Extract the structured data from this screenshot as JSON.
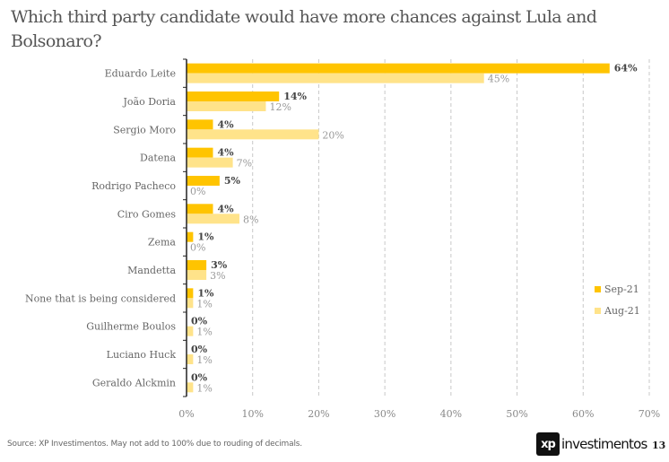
{
  "chart_data": {
    "type": "bar",
    "orientation": "horizontal",
    "title": "Which third party candidate would have more chances against Lula and Bolsonaro?",
    "categories": [
      "Eduardo Leite",
      "João Doria",
      "Sergio Moro",
      "Datena",
      "Rodrigo Pacheco",
      "Ciro Gomes",
      "Zema",
      "Mandetta",
      "None that is being considered",
      "Guilherme Boulos",
      "Luciano Huck",
      "Geraldo Alckmin"
    ],
    "series": [
      {
        "name": "Sep-21",
        "color": "#FFC400",
        "values": [
          64,
          14,
          4,
          4,
          5,
          4,
          1,
          3,
          1,
          0,
          0,
          0
        ],
        "labels": [
          "64%",
          "14%",
          "4%",
          "4%",
          "5%",
          "4%",
          "1%",
          "3%",
          "1%",
          "0%",
          "0%",
          "0%"
        ]
      },
      {
        "name": "Aug-21",
        "color": "#FFE38A",
        "values": [
          45,
          12,
          20,
          7,
          0,
          8,
          0,
          3,
          1,
          1,
          1,
          1
        ],
        "labels": [
          "45%",
          "12%",
          "20%",
          "7%",
          "0%",
          "8%",
          "0%",
          "3%",
          "1%",
          "1%",
          "1%",
          "1%"
        ]
      }
    ],
    "xlim": [
      0,
      70
    ],
    "xticks": [
      0,
      10,
      20,
      30,
      40,
      50,
      60,
      70
    ],
    "xtick_labels": [
      "0%",
      "10%",
      "20%",
      "30%",
      "40%",
      "50%",
      "60%",
      "70%"
    ],
    "xlabel": "",
    "ylabel": "",
    "grid": "vertical dashed",
    "legend": "right"
  },
  "footer": {
    "source": "Source: XP Investimentos. May not add to 100% due to rouding of decimals.",
    "logo_mark": "xp",
    "logo_text": "investimentos",
    "page_number": "13"
  }
}
